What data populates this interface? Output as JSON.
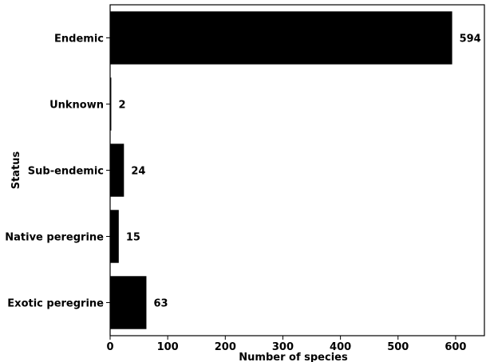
{
  "chart_data": {
    "type": "bar",
    "orientation": "horizontal",
    "categories": [
      "Endemic",
      "Unknown",
      "Sub-endemic",
      "Native peregrine",
      "Exotic peregrine"
    ],
    "values": [
      594,
      2,
      24,
      15,
      63
    ],
    "data_labels": [
      "594",
      "2",
      "24",
      "15",
      "63"
    ],
    "xlabel": "Number of species",
    "ylabel": "Status",
    "xlim": [
      0,
      650
    ],
    "xticks": [
      0,
      100,
      200,
      300,
      400,
      500,
      600
    ],
    "xtick_labels": [
      "0",
      "100",
      "200",
      "300",
      "400",
      "500",
      "600"
    ],
    "grid": false,
    "bar_color": "#000000"
  }
}
